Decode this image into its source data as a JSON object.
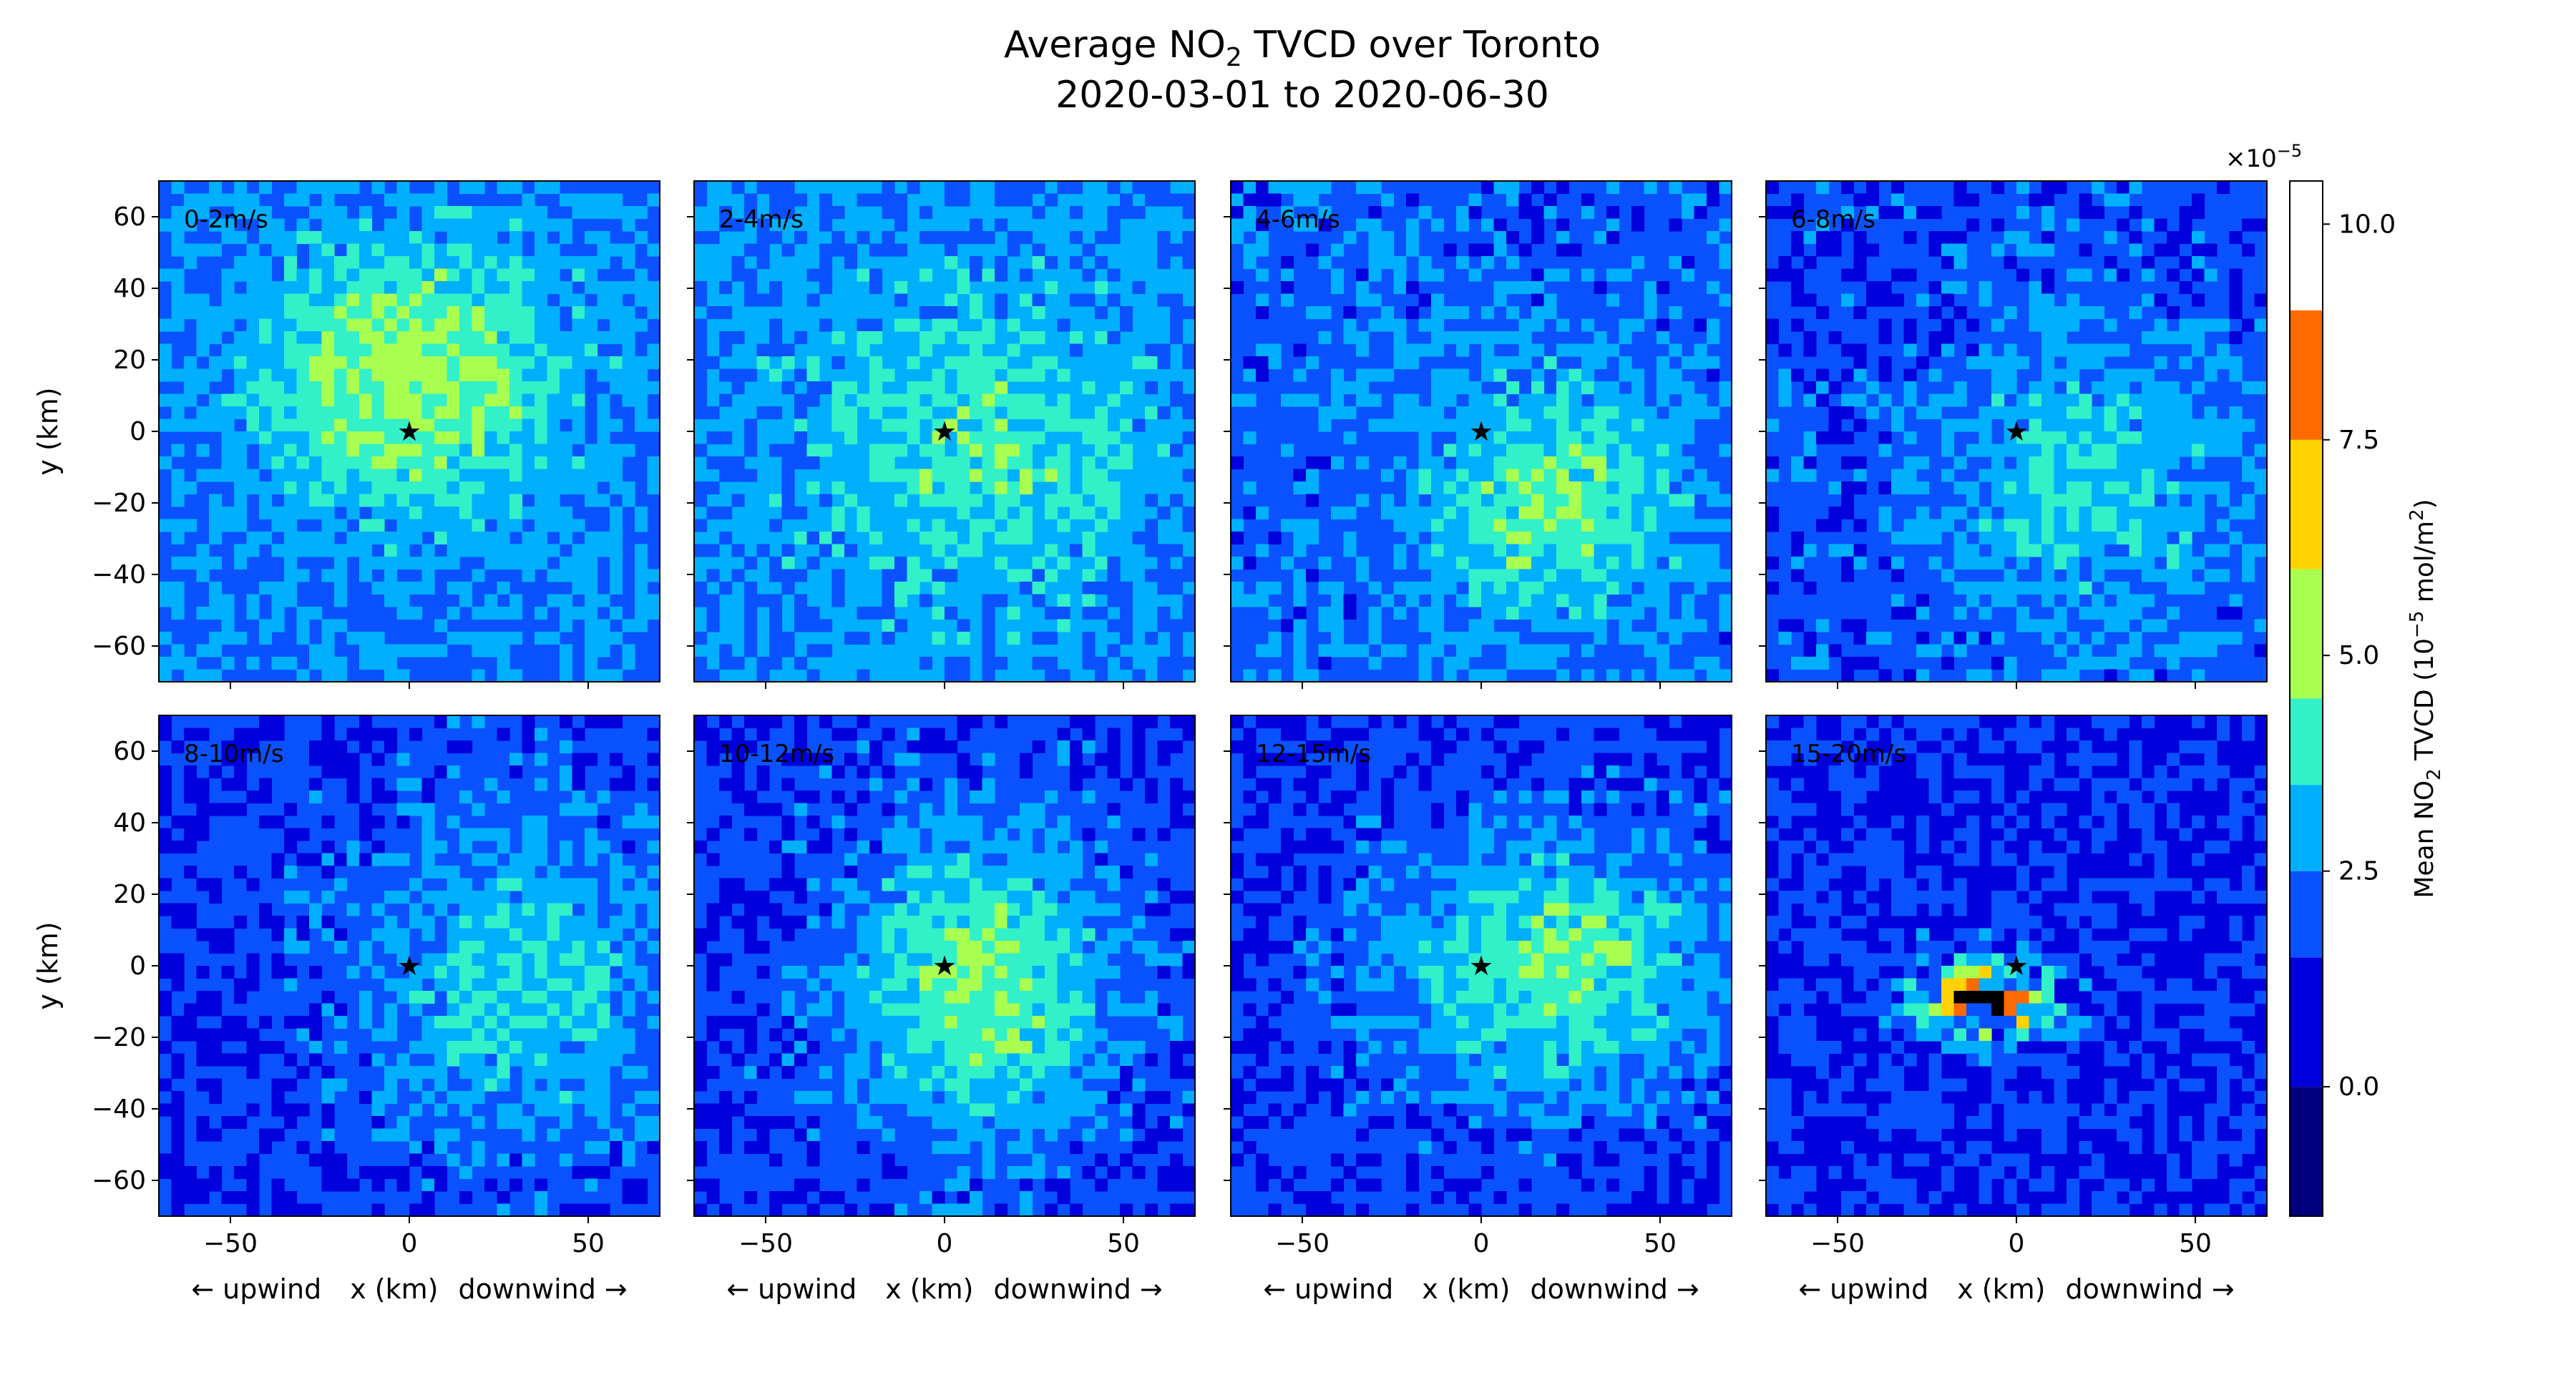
{
  "chart_data": {
    "type": "heatmap",
    "title_line1_prefix": "Average NO",
    "title_line1_sub": "2",
    "title_line1_suffix": " TVCD over Toronto",
    "title_line2": "2020-03-01 to 2020-06-30",
    "xlabel": {
      "left": "← upwind",
      "center": "x (km)",
      "right": "downwind →"
    },
    "ylabel": "y (km)",
    "xlim": [
      -70,
      70
    ],
    "ylim": [
      -70,
      70
    ],
    "xticks": [
      -50,
      0,
      50
    ],
    "yticks": [
      60,
      40,
      20,
      0,
      -20,
      -40,
      -60
    ],
    "source_marker": {
      "x": 0,
      "y": 0,
      "symbol": "★"
    },
    "panels": [
      {
        "label": "0-2m/s",
        "peak_value": 5.2,
        "base_value": 2.4
      },
      {
        "label": "2-4m/s",
        "peak_value": 4.0,
        "base_value": 2.6
      },
      {
        "label": "4-6m/s",
        "peak_value": 4.4,
        "base_value": 2.1
      },
      {
        "label": "6-8m/s",
        "peak_value": 3.6,
        "base_value": 1.8
      },
      {
        "label": "8-10m/s",
        "peak_value": 3.6,
        "base_value": 1.6
      },
      {
        "label": "10-12m/s",
        "peak_value": 4.6,
        "base_value": 1.7
      },
      {
        "label": "12-15m/s",
        "peak_value": 4.4,
        "base_value": 1.6
      },
      {
        "label": "15-20m/s",
        "peak_value": 8.5,
        "base_value": 1.4
      }
    ],
    "colorbar": {
      "label_prefix": "Mean NO",
      "label_sub": "2",
      "label_mid": " TVCD (10",
      "label_sup": "−5",
      "label_suffix": " mol/m",
      "label_sup2": "2",
      "label_end": ")",
      "multiplier_prefix": "×10",
      "multiplier_sup": "−5",
      "levels": [
        -1.5,
        0.0,
        1.5,
        2.5,
        3.5,
        4.5,
        6.0,
        7.5,
        9.0,
        10.5
      ],
      "colors": [
        "#00007f",
        "#0000dc",
        "#0a52ff",
        "#00b0ff",
        "#32f0c8",
        "#a8ff50",
        "#ffd200",
        "#ff6a00"
      ],
      "ticks": [
        0.0,
        2.5,
        5.0,
        7.5,
        10.0
      ],
      "tick_labels": [
        "0.0",
        "2.5",
        "5.0",
        "7.5",
        "10.0"
      ]
    }
  }
}
